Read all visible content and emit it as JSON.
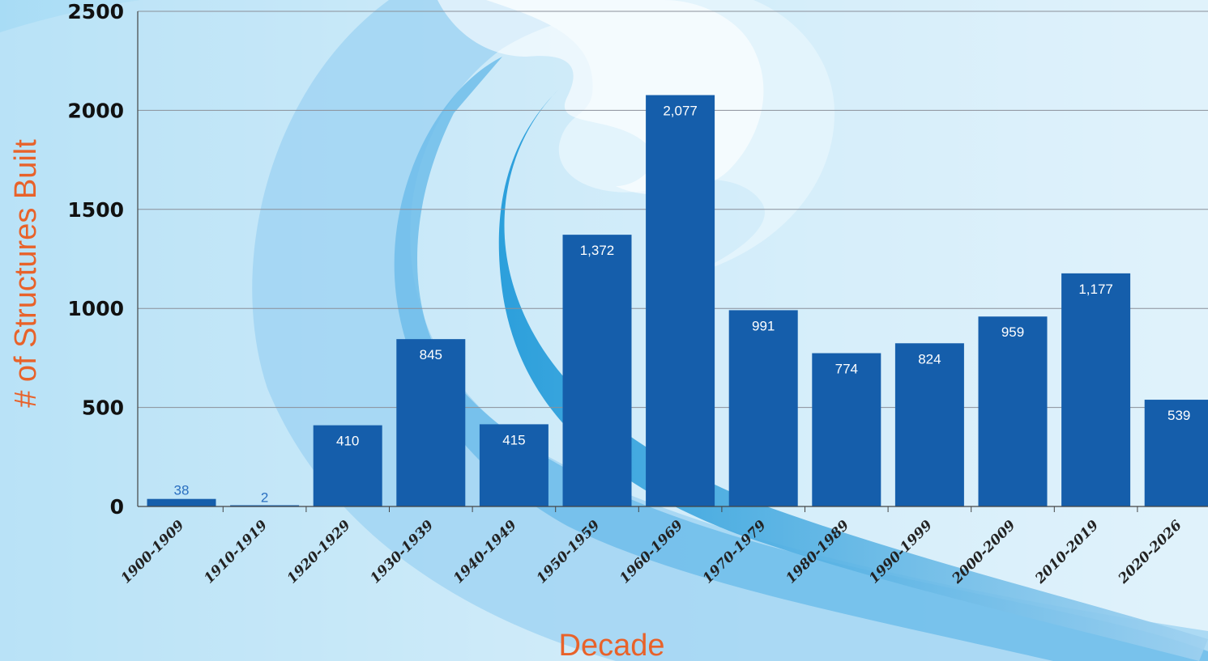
{
  "colors": {
    "bar": "#155eab",
    "axis_title": "#e8622a",
    "grid": "#8a8f99",
    "swirl_light": "#bfe4f6",
    "swirl_mid": "#7cc3ec",
    "swirl_dark": "#1a97d8"
  },
  "chart_data": {
    "type": "bar",
    "categories": [
      "1900-1909",
      "1910-1919",
      "1920-1929",
      "1930-1939",
      "1940-1949",
      "1950-1959",
      "1960-1969",
      "1970-1979",
      "1980-1989",
      "1990-1999",
      "2000-2009",
      "2010-2019",
      "2020-2026"
    ],
    "values": [
      38,
      2,
      410,
      845,
      415,
      1372,
      2077,
      991,
      774,
      824,
      959,
      1177,
      539
    ],
    "data_labels": [
      "38",
      "2",
      "410",
      "845",
      "415",
      "1,372",
      "2,077",
      "991",
      "774",
      "824",
      "959",
      "1,177",
      "539"
    ],
    "xlabel": "Decade",
    "ylabel": "# of Structures Built",
    "ylim": [
      0,
      2500
    ],
    "yticks": [
      0,
      500,
      1000,
      1500,
      2000,
      2500
    ],
    "ytick_labels": [
      "0",
      "500",
      "1000",
      "1500",
      "2000",
      "2500"
    ],
    "grid": true
  }
}
